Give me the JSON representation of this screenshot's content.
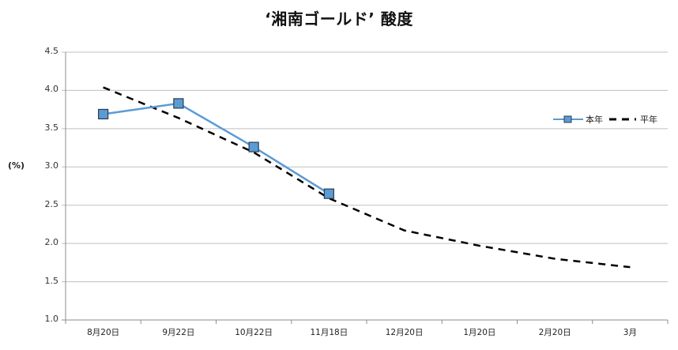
{
  "chart_data": {
    "type": "line",
    "title": "‘湘南ゴールド’ 酸度",
    "xlabel": "",
    "ylabel": "(%)",
    "ylim": [
      1.0,
      4.5
    ],
    "yticks": [
      "4.5",
      "4.0",
      "3.5",
      "3.0",
      "2.5",
      "2.0",
      "1.5",
      "1.0"
    ],
    "categories": [
      "8月20日",
      "9月22日",
      "10月22日",
      "11月18日",
      "12月20日",
      "1月20日",
      "2月20日",
      "3月"
    ],
    "series": [
      {
        "name": "本年",
        "style": "solid-with-square-markers",
        "color": "#5B9BD5",
        "values": [
          3.69,
          3.83,
          3.26,
          2.65,
          null,
          null,
          null,
          null
        ]
      },
      {
        "name": "平年",
        "style": "dashed",
        "color": "#000000",
        "values": [
          4.04,
          3.64,
          3.19,
          2.59,
          2.17,
          1.97,
          1.8,
          1.69
        ]
      }
    ],
    "grid": true,
    "legend_position": "right"
  }
}
